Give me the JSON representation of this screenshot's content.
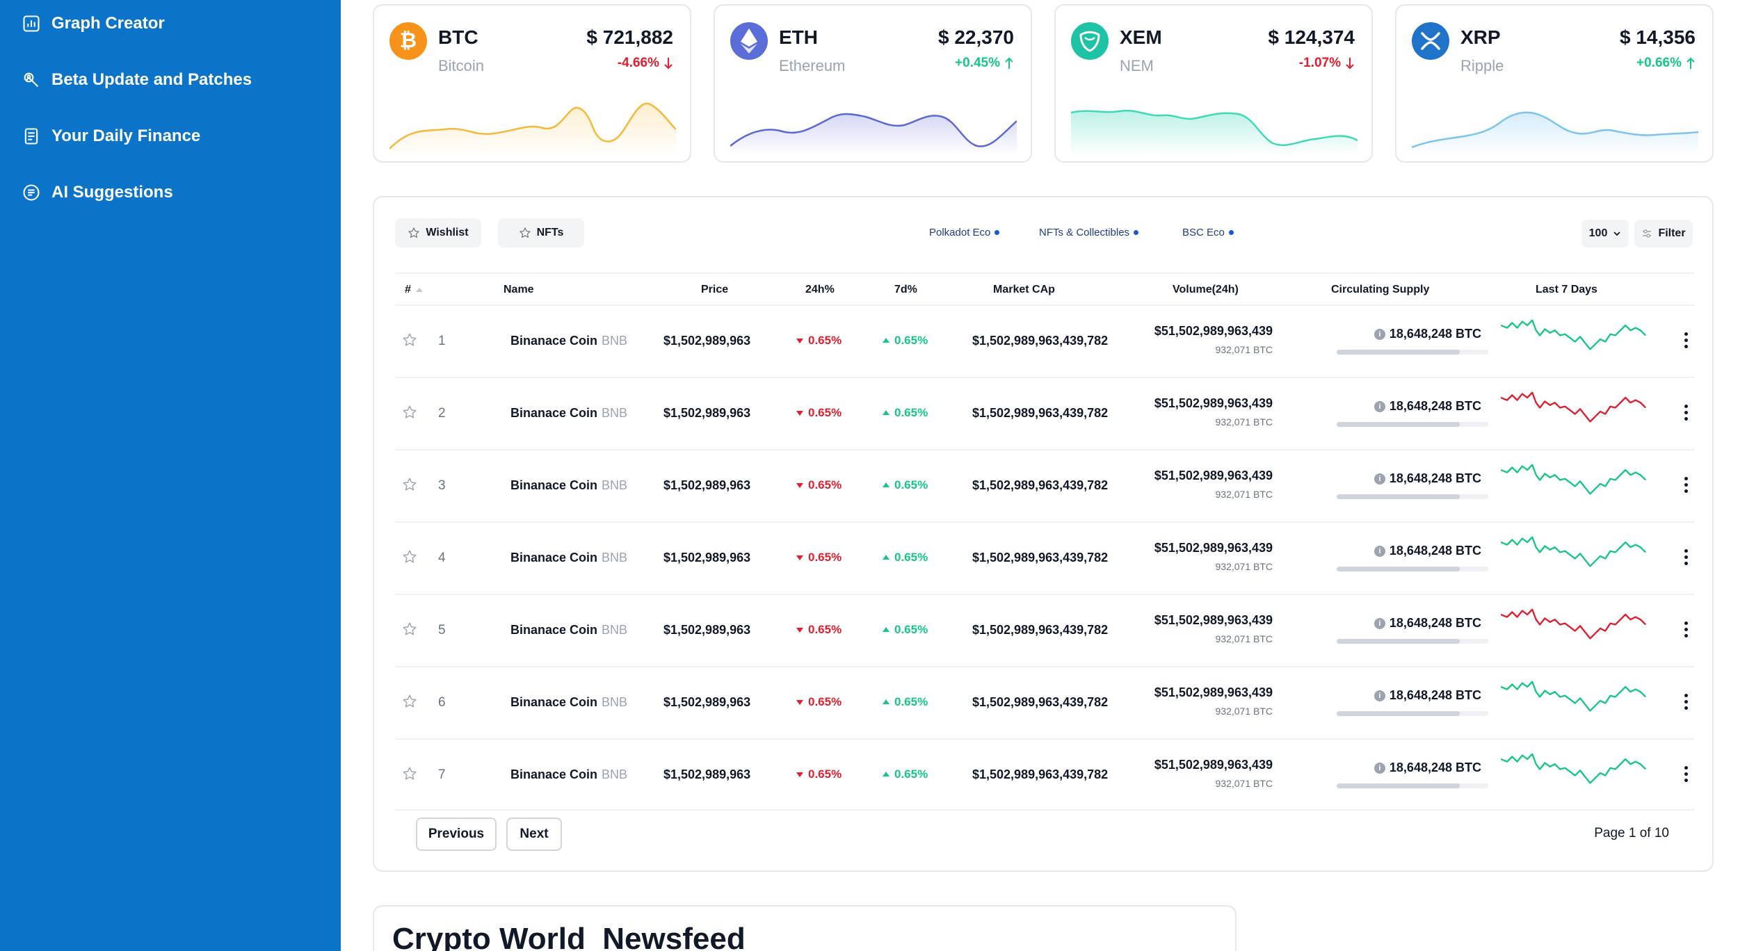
{
  "sidebar": {
    "items": [
      {
        "label": "Graph Creator",
        "icon": "chart-icon"
      },
      {
        "label": "Beta Update and Patches",
        "icon": "search-people-icon"
      },
      {
        "label": "Your Daily Finance",
        "icon": "document-icon"
      },
      {
        "label": "AI Suggestions",
        "icon": "list-circle-icon"
      }
    ]
  },
  "cards": [
    {
      "symbol": "BTC",
      "name": "Bitcoin",
      "price": "$ 721,882",
      "change": "-4.66%",
      "direction": "down",
      "color": "#f7931a",
      "line": "#f5b83b"
    },
    {
      "symbol": "ETH",
      "name": "Ethereum",
      "price": "$ 22,370",
      "change": "+0.45%",
      "direction": "up",
      "color": "#5b6dd8",
      "line": "#6a75d8"
    },
    {
      "symbol": "XEM",
      "name": "NEM",
      "price": "$ 124,374",
      "change": "-1.07%",
      "direction": "down",
      "color": "#1ec3a6",
      "line": "#3fd8b8"
    },
    {
      "symbol": "XRP",
      "name": "Ripple",
      "price": "$ 14,356",
      "change": "+0.66%",
      "direction": "up",
      "color": "#1f73c8",
      "line": "#7cc3ee"
    }
  ],
  "filters": {
    "wishlist": "Wishlist",
    "nfts": "NFTs",
    "ecos": [
      "Polkadot Eco",
      "NFTs & Collectibles",
      "BSC Eco"
    ],
    "rows_select": "100",
    "filter_label": "Filter"
  },
  "table": {
    "headers": {
      "rank": "#",
      "name": "Name",
      "price": "Price",
      "ch24": "24h%",
      "ch7": "7d%",
      "mcap": "Market CAp",
      "volume": "Volume(24h)",
      "supply": "Circulating Supply",
      "last7": "Last 7 Days"
    },
    "rows": [
      {
        "rank": "1",
        "name": "Binanace Coin",
        "ticker": "BNB",
        "price": "$1,502,989,963",
        "ch24": "0.65%",
        "ch7": "0.65%",
        "mcap": "$1,502,989,963,439,782",
        "volume": "$51,502,989,963,439",
        "volume_sub": "932,071 BTC",
        "supply": "18,648,248 BTC",
        "supply_fill": 0.81,
        "trend": "green"
      },
      {
        "rank": "2",
        "name": "Binanace Coin",
        "ticker": "BNB",
        "price": "$1,502,989,963",
        "ch24": "0.65%",
        "ch7": "0.65%",
        "mcap": "$1,502,989,963,439,782",
        "volume": "$51,502,989,963,439",
        "volume_sub": "932,071 BTC",
        "supply": "18,648,248 BTC",
        "supply_fill": 0.81,
        "trend": "red"
      },
      {
        "rank": "3",
        "name": "Binanace Coin",
        "ticker": "BNB",
        "price": "$1,502,989,963",
        "ch24": "0.65%",
        "ch7": "0.65%",
        "mcap": "$1,502,989,963,439,782",
        "volume": "$51,502,989,963,439",
        "volume_sub": "932,071 BTC",
        "supply": "18,648,248 BTC",
        "supply_fill": 0.81,
        "trend": "green"
      },
      {
        "rank": "4",
        "name": "Binanace Coin",
        "ticker": "BNB",
        "price": "$1,502,989,963",
        "ch24": "0.65%",
        "ch7": "0.65%",
        "mcap": "$1,502,989,963,439,782",
        "volume": "$51,502,989,963,439",
        "volume_sub": "932,071 BTC",
        "supply": "18,648,248 BTC",
        "supply_fill": 0.81,
        "trend": "green"
      },
      {
        "rank": "5",
        "name": "Binanace Coin",
        "ticker": "BNB",
        "price": "$1,502,989,963",
        "ch24": "0.65%",
        "ch7": "0.65%",
        "mcap": "$1,502,989,963,439,782",
        "volume": "$51,502,989,963,439",
        "volume_sub": "932,071 BTC",
        "supply": "18,648,248 BTC",
        "supply_fill": 0.81,
        "trend": "red"
      },
      {
        "rank": "6",
        "name": "Binanace Coin",
        "ticker": "BNB",
        "price": "$1,502,989,963",
        "ch24": "0.65%",
        "ch7": "0.65%",
        "mcap": "$1,502,989,963,439,782",
        "volume": "$51,502,989,963,439",
        "volume_sub": "932,071 BTC",
        "supply": "18,648,248 BTC",
        "supply_fill": 0.81,
        "trend": "green"
      },
      {
        "rank": "7",
        "name": "Binanace Coin",
        "ticker": "BNB",
        "price": "$1,502,989,963",
        "ch24": "0.65%",
        "ch7": "0.65%",
        "mcap": "$1,502,989,963,439,782",
        "volume": "$51,502,989,963,439",
        "volume_sub": "932,071 BTC",
        "supply": "18,648,248 BTC",
        "supply_fill": 0.81,
        "trend": "green"
      }
    ]
  },
  "pagination": {
    "previous": "Previous",
    "next": "Next",
    "info": "Page 1 of 10"
  },
  "news": {
    "title": "Crypto World  Newsfeed"
  },
  "colors": {
    "sidebar": "#0b74c9",
    "negative": "#e11d2e",
    "positive": "#16c784"
  }
}
